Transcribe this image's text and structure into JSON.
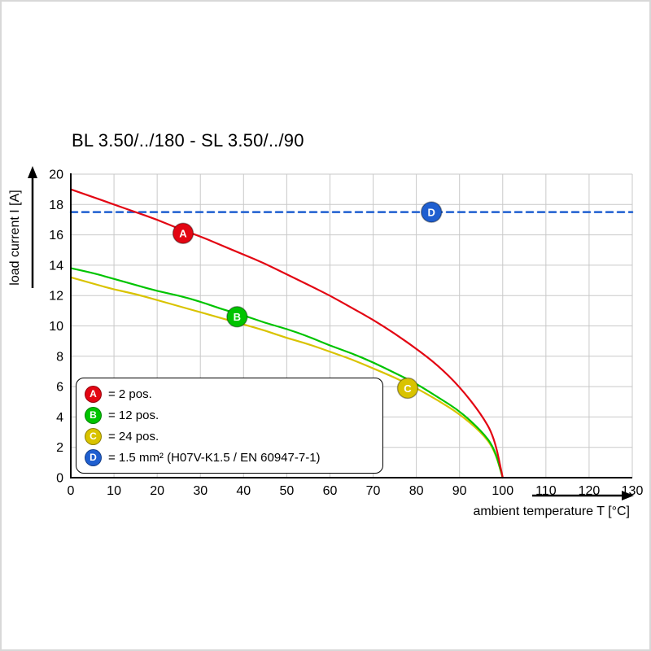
{
  "title": "BL 3.50/../180 - SL 3.50/../90",
  "chart_data": {
    "type": "line",
    "title": "BL 3.50/../180 - SL 3.50/../90",
    "xlabel": "ambient temperature T [°C]",
    "ylabel": "load current I [A]",
    "xlim": [
      0,
      130
    ],
    "ylim": [
      0,
      20
    ],
    "xticks": [
      0,
      10,
      20,
      30,
      40,
      50,
      60,
      70,
      80,
      90,
      100,
      110,
      120,
      130
    ],
    "yticks": [
      0,
      2,
      4,
      6,
      8,
      10,
      12,
      14,
      16,
      18,
      20
    ],
    "grid": true,
    "legend_position": "lower left",
    "colors": {
      "grid": "#c9c9c9",
      "axis": "#000000",
      "red": "#e30613",
      "green": "#00c400",
      "yellow": "#d9c300",
      "blue": "#1f5fd0"
    },
    "series": [
      {
        "name": "1.5 mm² (H07V-K1.5 / EN 60947-7-1)",
        "marker_label": "D",
        "color": "#1f5fd0",
        "style": "dashed",
        "marker_at": [
          83.5,
          17.5
        ],
        "x": [
          0,
          130
        ],
        "y": [
          17.5,
          17.5
        ]
      },
      {
        "name": "24 pos.",
        "marker_label": "C",
        "color": "#d9c300",
        "style": "solid",
        "marker_at": [
          78,
          5.9
        ],
        "x": [
          0,
          5,
          10,
          15,
          20,
          25,
          30,
          35,
          40,
          45,
          50,
          55,
          60,
          65,
          70,
          75,
          80,
          85,
          90,
          95,
          98,
          100
        ],
        "y": [
          13.2,
          12.8,
          12.4,
          12.1,
          11.7,
          11.3,
          10.9,
          10.5,
          10.1,
          9.7,
          9.2,
          8.8,
          8.3,
          7.8,
          7.2,
          6.6,
          5.9,
          5.1,
          4.2,
          3.0,
          1.9,
          0
        ]
      },
      {
        "name": "12 pos.",
        "marker_label": "B",
        "color": "#00c400",
        "style": "solid",
        "marker_at": [
          38.5,
          10.6
        ],
        "x": [
          0,
          5,
          10,
          15,
          20,
          25,
          30,
          35,
          40,
          45,
          50,
          55,
          60,
          65,
          70,
          75,
          80,
          85,
          90,
          95,
          98,
          100
        ],
        "y": [
          13.8,
          13.5,
          13.1,
          12.7,
          12.3,
          12.0,
          11.6,
          11.1,
          10.7,
          10.2,
          9.8,
          9.3,
          8.7,
          8.2,
          7.6,
          6.9,
          6.2,
          5.3,
          4.4,
          3.1,
          2.0,
          0
        ]
      },
      {
        "name": "2 pos.",
        "marker_label": "A",
        "color": "#e30613",
        "style": "solid",
        "marker_at": [
          26,
          16.1
        ],
        "x": [
          0,
          5,
          10,
          15,
          20,
          25,
          30,
          35,
          40,
          45,
          50,
          55,
          60,
          65,
          70,
          75,
          80,
          85,
          90,
          95,
          98,
          100
        ],
        "y": [
          19.0,
          18.5,
          18.0,
          17.5,
          17.0,
          16.4,
          15.9,
          15.3,
          14.7,
          14.1,
          13.4,
          12.7,
          12.0,
          11.2,
          10.4,
          9.5,
          8.5,
          7.4,
          6.0,
          4.2,
          2.7,
          0
        ]
      }
    ],
    "legend": [
      {
        "key": "A",
        "color": "#e30613",
        "label": "= 2 pos."
      },
      {
        "key": "B",
        "color": "#00c400",
        "label": "= 12 pos."
      },
      {
        "key": "C",
        "color": "#d9c300",
        "label": "= 24 pos."
      },
      {
        "key": "D",
        "color": "#1f5fd0",
        "label": "= 1.5 mm² (H07V-K1.5 / EN 60947-7-1)"
      }
    ]
  }
}
